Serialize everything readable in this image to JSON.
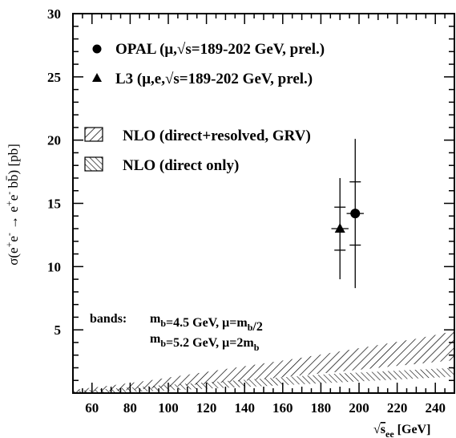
{
  "chart_data": {
    "type": "scatter",
    "title": "",
    "xlabel": "√s_ee [GeV]",
    "ylabel": "σ(e+e- → e+e- bb̄) [pb]",
    "xlim": [
      50,
      250
    ],
    "ylim": [
      0,
      30
    ],
    "x_ticks": [
      60,
      80,
      100,
      120,
      140,
      160,
      180,
      200,
      220,
      240
    ],
    "y_ticks": [
      5,
      10,
      15,
      20,
      25,
      30
    ],
    "grid": false,
    "legend_position": "top-left",
    "series": [
      {
        "name": "OPAL (μ,√s=189-202 GeV, prel.)",
        "marker": "circle",
        "points": [
          {
            "x": 198,
            "y": 14.2,
            "x_err": 4.5,
            "y_stat": 2.5,
            "y_tot": 5.9
          }
        ]
      },
      {
        "name": "L3 (μ,e,√s=189-202 GeV, prel.)",
        "marker": "triangle",
        "points": [
          {
            "x": 190,
            "y": 13.0,
            "x_err": 4.5,
            "y_stat": 1.7,
            "y_tot": 4.0
          }
        ]
      }
    ],
    "bands": [
      {
        "name": "NLO (direct+resolved, GRV)",
        "hatch": "forward",
        "x": [
          50,
          70,
          90,
          110,
          130,
          150,
          170,
          190,
          210,
          230,
          250
        ],
        "lower": [
          0.02,
          0.15,
          0.35,
          0.6,
          0.85,
          1.1,
          1.4,
          1.7,
          2.0,
          2.3,
          2.6
        ],
        "upper": [
          0.25,
          0.6,
          1.0,
          1.45,
          1.9,
          2.35,
          2.8,
          3.3,
          3.8,
          4.3,
          4.9
        ]
      },
      {
        "name": "NLO (direct only)",
        "hatch": "backward",
        "x": [
          50,
          70,
          90,
          110,
          130,
          150,
          170,
          190,
          210,
          230,
          250
        ],
        "lower": [
          0.0,
          0.05,
          0.15,
          0.28,
          0.42,
          0.55,
          0.7,
          0.85,
          1.0,
          1.15,
          1.3
        ],
        "upper": [
          0.15,
          0.35,
          0.55,
          0.75,
          0.95,
          1.15,
          1.35,
          1.55,
          1.7,
          1.85,
          2.0
        ]
      }
    ],
    "annotation": {
      "prefix": "bands:",
      "line1": "m_b=4.5 GeV, μ=m_b/2",
      "line2": "m_b=5.2 GeV, μ=2m_b"
    }
  }
}
